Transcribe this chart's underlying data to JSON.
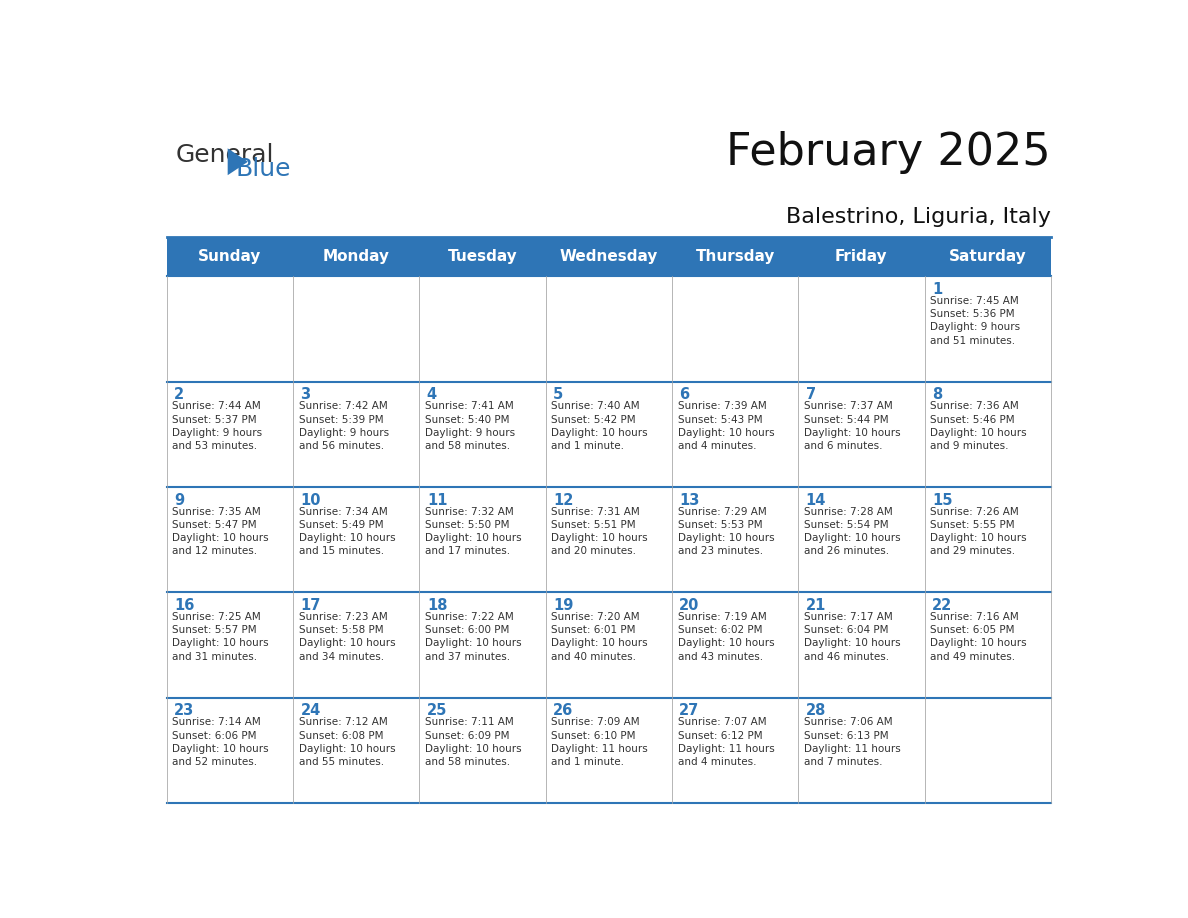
{
  "title": "February 2025",
  "subtitle": "Balestrino, Liguria, Italy",
  "header_bg": "#2E75B6",
  "header_text_color": "#FFFFFF",
  "cell_bg_white": "#FFFFFF",
  "day_number_color": "#2E75B6",
  "text_color": "#333333",
  "border_color": "#2E75B6",
  "days_of_week": [
    "Sunday",
    "Monday",
    "Tuesday",
    "Wednesday",
    "Thursday",
    "Friday",
    "Saturday"
  ],
  "weeks": [
    [
      {
        "day": null,
        "info": null
      },
      {
        "day": null,
        "info": null
      },
      {
        "day": null,
        "info": null
      },
      {
        "day": null,
        "info": null
      },
      {
        "day": null,
        "info": null
      },
      {
        "day": null,
        "info": null
      },
      {
        "day": 1,
        "info": "Sunrise: 7:45 AM\nSunset: 5:36 PM\nDaylight: 9 hours\nand 51 minutes."
      }
    ],
    [
      {
        "day": 2,
        "info": "Sunrise: 7:44 AM\nSunset: 5:37 PM\nDaylight: 9 hours\nand 53 minutes."
      },
      {
        "day": 3,
        "info": "Sunrise: 7:42 AM\nSunset: 5:39 PM\nDaylight: 9 hours\nand 56 minutes."
      },
      {
        "day": 4,
        "info": "Sunrise: 7:41 AM\nSunset: 5:40 PM\nDaylight: 9 hours\nand 58 minutes."
      },
      {
        "day": 5,
        "info": "Sunrise: 7:40 AM\nSunset: 5:42 PM\nDaylight: 10 hours\nand 1 minute."
      },
      {
        "day": 6,
        "info": "Sunrise: 7:39 AM\nSunset: 5:43 PM\nDaylight: 10 hours\nand 4 minutes."
      },
      {
        "day": 7,
        "info": "Sunrise: 7:37 AM\nSunset: 5:44 PM\nDaylight: 10 hours\nand 6 minutes."
      },
      {
        "day": 8,
        "info": "Sunrise: 7:36 AM\nSunset: 5:46 PM\nDaylight: 10 hours\nand 9 minutes."
      }
    ],
    [
      {
        "day": 9,
        "info": "Sunrise: 7:35 AM\nSunset: 5:47 PM\nDaylight: 10 hours\nand 12 minutes."
      },
      {
        "day": 10,
        "info": "Sunrise: 7:34 AM\nSunset: 5:49 PM\nDaylight: 10 hours\nand 15 minutes."
      },
      {
        "day": 11,
        "info": "Sunrise: 7:32 AM\nSunset: 5:50 PM\nDaylight: 10 hours\nand 17 minutes."
      },
      {
        "day": 12,
        "info": "Sunrise: 7:31 AM\nSunset: 5:51 PM\nDaylight: 10 hours\nand 20 minutes."
      },
      {
        "day": 13,
        "info": "Sunrise: 7:29 AM\nSunset: 5:53 PM\nDaylight: 10 hours\nand 23 minutes."
      },
      {
        "day": 14,
        "info": "Sunrise: 7:28 AM\nSunset: 5:54 PM\nDaylight: 10 hours\nand 26 minutes."
      },
      {
        "day": 15,
        "info": "Sunrise: 7:26 AM\nSunset: 5:55 PM\nDaylight: 10 hours\nand 29 minutes."
      }
    ],
    [
      {
        "day": 16,
        "info": "Sunrise: 7:25 AM\nSunset: 5:57 PM\nDaylight: 10 hours\nand 31 minutes."
      },
      {
        "day": 17,
        "info": "Sunrise: 7:23 AM\nSunset: 5:58 PM\nDaylight: 10 hours\nand 34 minutes."
      },
      {
        "day": 18,
        "info": "Sunrise: 7:22 AM\nSunset: 6:00 PM\nDaylight: 10 hours\nand 37 minutes."
      },
      {
        "day": 19,
        "info": "Sunrise: 7:20 AM\nSunset: 6:01 PM\nDaylight: 10 hours\nand 40 minutes."
      },
      {
        "day": 20,
        "info": "Sunrise: 7:19 AM\nSunset: 6:02 PM\nDaylight: 10 hours\nand 43 minutes."
      },
      {
        "day": 21,
        "info": "Sunrise: 7:17 AM\nSunset: 6:04 PM\nDaylight: 10 hours\nand 46 minutes."
      },
      {
        "day": 22,
        "info": "Sunrise: 7:16 AM\nSunset: 6:05 PM\nDaylight: 10 hours\nand 49 minutes."
      }
    ],
    [
      {
        "day": 23,
        "info": "Sunrise: 7:14 AM\nSunset: 6:06 PM\nDaylight: 10 hours\nand 52 minutes."
      },
      {
        "day": 24,
        "info": "Sunrise: 7:12 AM\nSunset: 6:08 PM\nDaylight: 10 hours\nand 55 minutes."
      },
      {
        "day": 25,
        "info": "Sunrise: 7:11 AM\nSunset: 6:09 PM\nDaylight: 10 hours\nand 58 minutes."
      },
      {
        "day": 26,
        "info": "Sunrise: 7:09 AM\nSunset: 6:10 PM\nDaylight: 11 hours\nand 1 minute."
      },
      {
        "day": 27,
        "info": "Sunrise: 7:07 AM\nSunset: 6:12 PM\nDaylight: 11 hours\nand 4 minutes."
      },
      {
        "day": 28,
        "info": "Sunrise: 7:06 AM\nSunset: 6:13 PM\nDaylight: 11 hours\nand 7 minutes."
      },
      {
        "day": null,
        "info": null
      }
    ]
  ],
  "logo_text1": "General",
  "logo_text2": "Blue",
  "logo_text1_color": "#333333",
  "logo_text2_color": "#2E75B6",
  "logo_triangle_color": "#2E75B6"
}
